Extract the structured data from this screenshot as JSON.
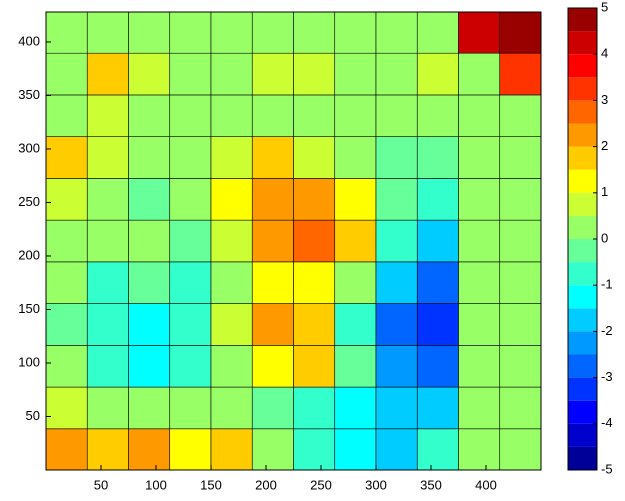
{
  "chart_data": {
    "type": "contourf",
    "x": [
      19,
      56,
      94,
      131,
      169,
      206,
      244,
      281,
      319,
      356,
      394,
      431
    ],
    "y": [
      19,
      58,
      97,
      136,
      175,
      214,
      253,
      292,
      331,
      370,
      409
    ],
    "z": [
      [
        2,
        1.5,
        2,
        1,
        1.5,
        0,
        -1,
        -1.5,
        -2,
        -1,
        0,
        0
      ],
      [
        0.5,
        0,
        0,
        0,
        0,
        -0.5,
        -1,
        -1.5,
        -2,
        -2,
        0,
        0
      ],
      [
        0,
        -1,
        -1.5,
        -1,
        0,
        1,
        1.5,
        -0.5,
        -2.5,
        -3,
        0,
        0
      ],
      [
        -0.5,
        -1,
        -1.5,
        -1,
        0.5,
        2,
        1.5,
        -1,
        -3,
        -3.5,
        0,
        0
      ],
      [
        0,
        -1,
        -0.5,
        -1,
        0,
        1,
        1,
        0,
        -2,
        -3,
        0,
        0
      ],
      [
        0,
        0,
        0,
        -0.5,
        0.5,
        2,
        2.5,
        1.5,
        -1,
        -2,
        0,
        0
      ],
      [
        0.5,
        0,
        -0.5,
        0,
        1,
        2,
        2,
        1,
        -0.5,
        -1,
        0,
        0
      ],
      [
        1.5,
        0.5,
        0,
        0,
        0.5,
        1.5,
        0.5,
        0,
        -0.5,
        -0.5,
        0,
        0
      ],
      [
        0,
        0.5,
        0,
        0,
        0,
        0,
        0,
        0,
        0,
        0,
        0,
        0
      ],
      [
        0,
        1.5,
        0.5,
        0,
        0,
        0.5,
        0.5,
        0,
        0,
        0.5,
        0,
        3
      ],
      [
        0,
        0,
        0,
        0,
        0,
        0,
        0,
        0,
        0,
        0,
        4,
        5
      ]
    ],
    "xlim": [
      0,
      450
    ],
    "xticks": [
      50,
      100,
      150,
      200,
      250,
      300,
      350,
      400
    ],
    "ylim": [
      0,
      428
    ],
    "yticks": [
      50,
      100,
      150,
      200,
      250,
      300,
      350,
      400
    ],
    "clim": [
      -5,
      5
    ],
    "cticks": [
      -5,
      -4,
      -3,
      -2,
      -1,
      0,
      1,
      2,
      3,
      4,
      5
    ],
    "colormap": [
      "#000099",
      "#0000cc",
      "#0000ff",
      "#0033ff",
      "#0066ff",
      "#0099ff",
      "#00ccff",
      "#00ffff",
      "#33ffcc",
      "#66ff99",
      "#99ff66",
      "#ccff33",
      "#ffff00",
      "#ffcc00",
      "#ff9900",
      "#ff6600",
      "#ff3300",
      "#ff0000",
      "#cc0000",
      "#990000"
    ]
  }
}
